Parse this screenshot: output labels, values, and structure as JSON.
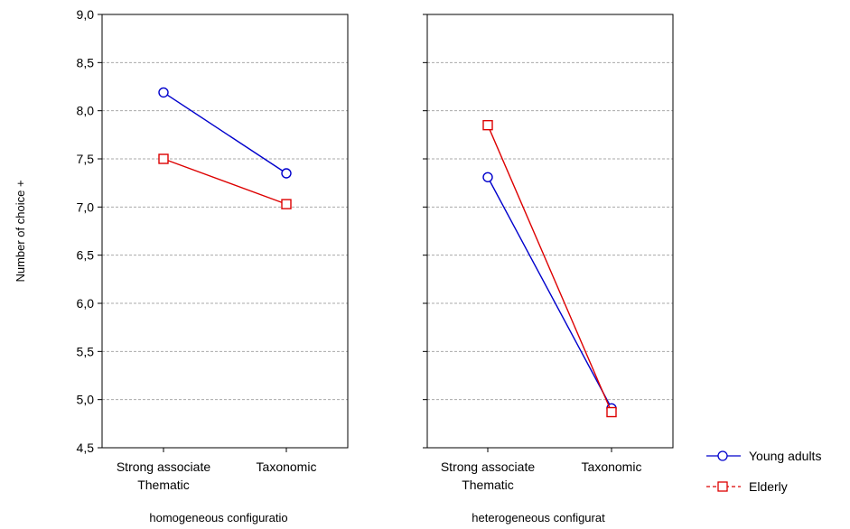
{
  "chart_data": {
    "type": "line",
    "ylabel": "Number of choice +",
    "ylim": [
      4.5,
      9.0
    ],
    "yticks": [
      4.5,
      5.0,
      5.5,
      6.0,
      6.5,
      7.0,
      7.5,
      8.0,
      8.5,
      9.0
    ],
    "ytick_labels": [
      "4,5",
      "5,0",
      "5,5",
      "6,0",
      "6,5",
      "7,0",
      "7,5",
      "8,0",
      "8,5",
      "9,0"
    ],
    "grid": "horizontal dashed",
    "legend_position": "bottom-right",
    "categories": [
      [
        "Strong associate",
        "Thematic"
      ],
      [
        "Taxonomic"
      ]
    ],
    "panels": [
      {
        "title": "homogeneous configuratio",
        "series": [
          {
            "name": "Young adults",
            "values": [
              8.19,
              7.35
            ]
          },
          {
            "name": "Elderly",
            "values": [
              7.5,
              7.03
            ]
          }
        ]
      },
      {
        "title": "heterogeneous configurat",
        "series": [
          {
            "name": "Young adults",
            "values": [
              7.31,
              4.91
            ]
          },
          {
            "name": "Elderly",
            "values": [
              7.85,
              4.87
            ]
          }
        ]
      }
    ],
    "series_styles": [
      {
        "color": "#0000cc",
        "marker": "circle"
      },
      {
        "color": "#dd0000",
        "marker": "square"
      }
    ]
  }
}
